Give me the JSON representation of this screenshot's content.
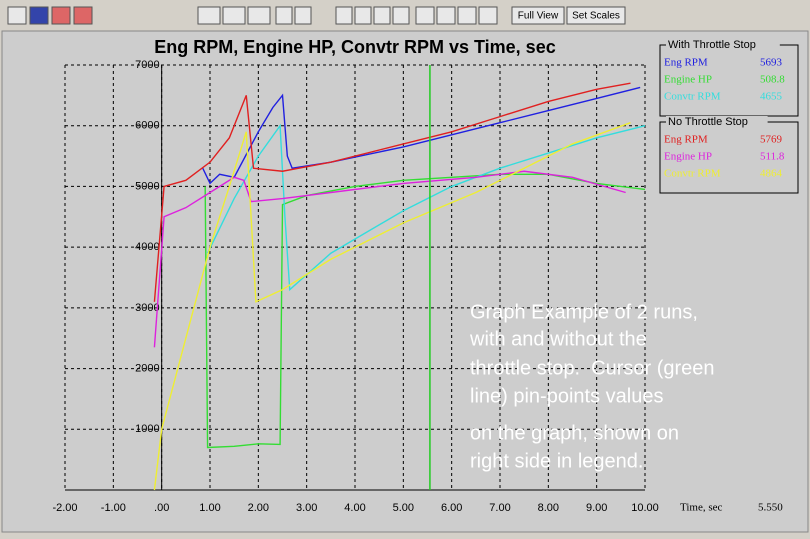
{
  "toolbar": {
    "buttons": [
      "Full View",
      "Set Scales"
    ]
  },
  "chart_data": {
    "type": "line",
    "title": "Eng RPM, Engine HP, Convtr RPM vs Time, sec",
    "x_label": "Time, sec",
    "xlim": [
      -2,
      10
    ],
    "xticks": [
      {
        "value": -2,
        "label": "-2.00"
      },
      {
        "value": -1,
        "label": "-1.00"
      },
      {
        "value": 0,
        "label": ".00"
      },
      {
        "value": 1,
        "label": "1.00"
      },
      {
        "value": 2,
        "label": "2.00"
      },
      {
        "value": 3,
        "label": "3.00"
      },
      {
        "value": 4,
        "label": "4.00"
      },
      {
        "value": 5,
        "label": "5.00"
      },
      {
        "value": 6,
        "label": "6.00"
      },
      {
        "value": 7,
        "label": "7.00"
      },
      {
        "value": 8,
        "label": "8.00"
      },
      {
        "value": 9,
        "label": "9.00"
      },
      {
        "value": 10,
        "label": "10.00"
      }
    ],
    "ylim": [
      0,
      7000
    ],
    "yticks": [
      1000,
      2000,
      3000,
      4000,
      5000,
      6000,
      7000
    ],
    "grid": true,
    "cursor": {
      "value": 5.55,
      "label": "5.550",
      "color": "#22cc22"
    },
    "legend_groups": [
      "With Throttle Stop",
      "No Throttle Stop"
    ],
    "series": [
      {
        "name": "Eng RPM",
        "group": 0,
        "color": "#2020e0",
        "cursor_value": 5693,
        "x": [
          0.85,
          1.0,
          1.2,
          1.5,
          1.8,
          2.0,
          2.3,
          2.5,
          2.6,
          2.7,
          3.5,
          5.0,
          6.0,
          7.0,
          8.0,
          9.0,
          9.9
        ],
        "values": [
          5300,
          5050,
          5200,
          5150,
          5600,
          5900,
          6300,
          6500,
          5500,
          5300,
          5400,
          5650,
          5850,
          6050,
          6250,
          6450,
          6630
        ]
      },
      {
        "name": "Engine HP",
        "group": 0,
        "color": "#33dd33",
        "cursor_value": 508.8,
        "x": [
          0.9,
          0.95,
          1.5,
          2.0,
          2.45,
          2.5,
          3.0,
          4.0,
          5.0,
          6.0,
          7.0,
          8.0,
          9.0,
          10.0
        ],
        "values": [
          5000,
          700,
          720,
          760,
          750,
          4700,
          4850,
          5000,
          5100,
          5150,
          5200,
          5200,
          5050,
          4950
        ]
      },
      {
        "name": "Convtr RPM",
        "group": 0,
        "color": "#33dddd",
        "cursor_value": 4655,
        "x": [
          0.95,
          1.5,
          2.0,
          2.45,
          2.55,
          2.65,
          3.5,
          5.0,
          6.0,
          7.0,
          8.0,
          9.0,
          10.0
        ],
        "values": [
          3900,
          4800,
          5500,
          6000,
          4500,
          3300,
          3900,
          4600,
          5000,
          5300,
          5550,
          5800,
          6000
        ]
      },
      {
        "name": "Eng RPM",
        "group": 1,
        "color": "#e02020",
        "cursor_value": 5769,
        "x": [
          -0.15,
          0.05,
          0.5,
          1.0,
          1.4,
          1.75,
          1.9,
          2.5,
          3.5,
          5.0,
          6.0,
          7.0,
          8.0,
          9.0,
          9.7
        ],
        "values": [
          3100,
          5000,
          5100,
          5400,
          5800,
          6500,
          5300,
          5250,
          5400,
          5700,
          5900,
          6150,
          6400,
          6600,
          6700
        ]
      },
      {
        "name": "Engine HP",
        "group": 1,
        "color": "#dd22dd",
        "cursor_value": 511.8,
        "x": [
          -0.15,
          0.05,
          0.5,
          1.0,
          1.5,
          1.7,
          1.85,
          2.5,
          3.5,
          5.0,
          6.5,
          7.5,
          8.5,
          9.6
        ],
        "values": [
          2350,
          4500,
          4650,
          4900,
          5150,
          5100,
          4750,
          4800,
          4900,
          5050,
          5150,
          5250,
          5150,
          4900
        ]
      },
      {
        "name": "Convtr RPM",
        "group": 1,
        "color": "#eeee33",
        "cursor_value": 4864,
        "x": [
          -0.15,
          0.0,
          0.5,
          1.0,
          1.4,
          1.75,
          1.95,
          2.5,
          3.5,
          5.0,
          6.5,
          7.5,
          8.5,
          9.7
        ],
        "values": [
          0,
          1000,
          2500,
          4000,
          5000,
          5900,
          3100,
          3300,
          3800,
          4400,
          4900,
          5300,
          5700,
          6050
        ]
      }
    ]
  },
  "annotation": [
    "Graph Example of 2 runs,",
    "with and without the",
    "throttle stop.  Cursor (green",
    "line) pin-points values",
    "on the graph, shown on",
    "right side in legend."
  ]
}
